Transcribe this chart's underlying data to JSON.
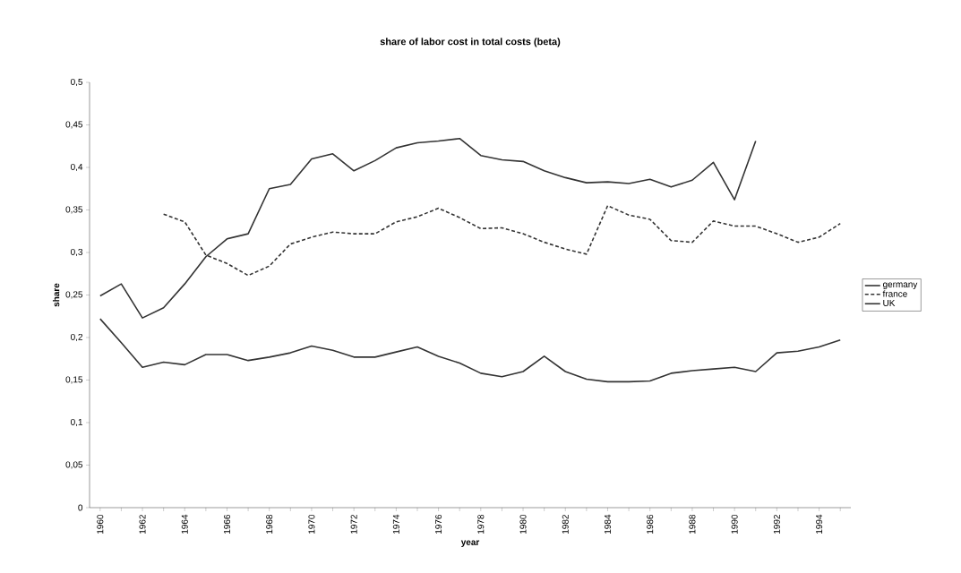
{
  "chart_data": {
    "type": "line",
    "title": "share of labor cost in total costs (beta)",
    "xlabel": "year",
    "ylabel": "share",
    "categories": [
      "1960",
      null,
      "1962",
      null,
      "1964",
      null,
      "1966",
      null,
      "1968",
      null,
      "1970",
      null,
      "1972",
      null,
      "1974",
      null,
      "1976",
      null,
      "1978",
      null,
      "1980",
      null,
      "1982",
      null,
      "1984",
      null,
      "1986",
      null,
      "1988",
      null,
      "1990",
      null,
      "1992",
      null,
      "1994",
      null
    ],
    "ylim": [
      0,
      0.5
    ],
    "yticks": [
      0,
      {
        "value": 0.05,
        "label": "0,05"
      },
      {
        "value": 0.1,
        "label": "0,1"
      },
      {
        "value": 0.15,
        "label": "0,15"
      },
      {
        "value": 0.2,
        "label": "0,2"
      },
      {
        "value": 0.25,
        "label": "0,25"
      },
      {
        "value": 0.3,
        "label": "0,3"
      },
      {
        "value": 0.35,
        "label": "0,35"
      },
      {
        "value": 0.4,
        "label": "0,4"
      },
      {
        "value": 0.45,
        "label": "0,45"
      },
      {
        "value": 0.5,
        "label": "0,5"
      }
    ],
    "legend": "right",
    "series": [
      {
        "name": "germany",
        "color": "#333333",
        "line_style": "solid",
        "values": [
          0.249,
          0.263,
          0.223,
          0.235,
          0.263,
          0.295,
          0.316,
          0.322,
          0.375,
          0.38,
          0.41,
          0.416,
          0.396,
          0.408,
          0.423,
          0.429,
          0.431,
          0.434,
          0.414,
          0.409,
          0.407,
          0.396,
          0.388,
          0.382,
          0.383,
          0.381,
          0.386,
          0.377,
          0.385,
          0.406,
          0.362,
          0.431,
          null,
          null,
          null,
          null
        ]
      },
      {
        "name": "france",
        "color": "#333333",
        "line_style": "dashed",
        "values": [
          null,
          null,
          null,
          0.345,
          0.336,
          0.297,
          0.287,
          0.273,
          0.284,
          0.31,
          0.318,
          0.324,
          0.322,
          0.322,
          0.336,
          0.342,
          0.352,
          0.341,
          0.328,
          0.329,
          0.322,
          0.312,
          0.304,
          0.298,
          0.355,
          0.344,
          0.339,
          0.314,
          0.312,
          0.337,
          0.331,
          0.331,
          0.322,
          0.312,
          0.318,
          0.334
        ]
      },
      {
        "name": "UK",
        "color": "#333333",
        "line_style": "solid",
        "values": [
          0.222,
          0.194,
          0.165,
          0.171,
          0.168,
          0.18,
          0.18,
          0.173,
          0.177,
          0.182,
          0.19,
          0.185,
          0.177,
          0.177,
          0.183,
          0.189,
          0.178,
          0.17,
          0.158,
          0.154,
          0.16,
          0.178,
          0.16,
          0.151,
          0.148,
          0.148,
          0.149,
          0.158,
          0.161,
          0.163,
          0.165,
          0.16,
          0.182,
          0.184,
          0.189,
          0.197
        ]
      }
    ]
  }
}
